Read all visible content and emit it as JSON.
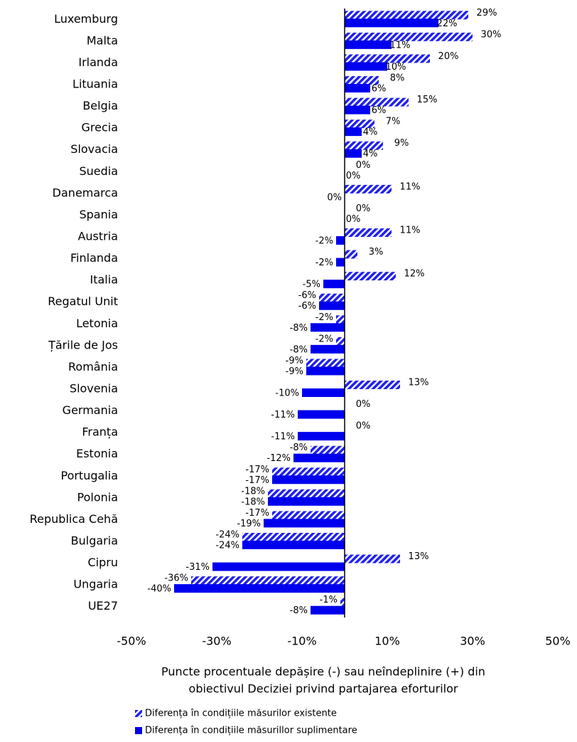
{
  "chart_data": {
    "type": "barh",
    "categories": [
      "Luxemburg",
      "Malta",
      "Irlanda",
      "Lituania",
      "Belgia",
      "Grecia",
      "Slovacia",
      "Suedia",
      "Danemarca",
      "Spania",
      "Austria",
      "Finlanda",
      "Italia",
      "Regatul Unit",
      "Letonia",
      "Țările de Jos",
      "România",
      "Slovenia",
      "Germania",
      "Franța",
      "Estonia",
      "Portugalia",
      "Polonia",
      "Republica Cehă",
      "Bulgaria",
      "Cipru",
      "Ungaria",
      "UE27"
    ],
    "series": [
      {
        "name": "Diferența în condițiile  măsurilor  existente",
        "color": "#2020ee",
        "hatch": true,
        "values": [
          29,
          30,
          20,
          8,
          15,
          7,
          9,
          0,
          11,
          0,
          11,
          3,
          12,
          -6,
          -2,
          -2,
          -9,
          13,
          0,
          0,
          -8,
          -17,
          -18,
          -17,
          -24,
          13,
          -36,
          -1
        ],
        "value_labels": [
          "29%",
          "30%",
          "20%",
          "8%",
          "15%",
          "7%",
          "9%",
          "0%",
          "11%",
          "0%",
          "11%",
          "3%",
          "12%",
          "-6%",
          "-2%",
          "-2%",
          "-9%",
          "13%",
          "0%",
          "0%",
          "-8%",
          "-17%",
          "-18%",
          "-17%",
          "-24%",
          "13%",
          "-36%",
          "-1%"
        ]
      },
      {
        "name": "Diferența în condițiile  măsurillor  suplimentare",
        "color": "#0000ee",
        "hatch": false,
        "values": [
          22,
          11,
          10,
          6,
          6,
          4,
          4,
          0,
          0,
          0,
          -2,
          -2,
          -5,
          -6,
          -8,
          -8,
          -9,
          -10,
          -11,
          -11,
          -12,
          -17,
          -18,
          -19,
          -24,
          -31,
          -40,
          -8
        ],
        "value_labels": [
          "22%",
          "11%",
          "10%",
          "6%",
          "6%",
          "4%",
          "4%",
          "0%",
          "0%",
          "0%",
          "-2%",
          "-2%",
          "-5%",
          "-6%",
          "-8%",
          "-8%",
          "-9%",
          "-10%",
          "-11%",
          "-11%",
          "-12%",
          "-17%",
          "-18%",
          "-19%",
          "-24%",
          "-31%",
          "-40%",
          "-8%"
        ]
      }
    ],
    "xlim": [
      -50,
      50
    ],
    "xticks": [
      {
        "value": -50,
        "label": "-50%"
      },
      {
        "value": -30,
        "label": "-30%"
      },
      {
        "value": -10,
        "label": "-10%"
      },
      {
        "value": 10,
        "label": "10%"
      },
      {
        "value": 30,
        "label": "30%"
      },
      {
        "value": 50,
        "label": "50%"
      }
    ],
    "xlabel": [
      "Puncte procentuale depășire (-) sau neîndeplinire (+) din",
      "obiectivul Deciziei privind partajarea eforturilor"
    ],
    "legend": "bottom-left"
  }
}
